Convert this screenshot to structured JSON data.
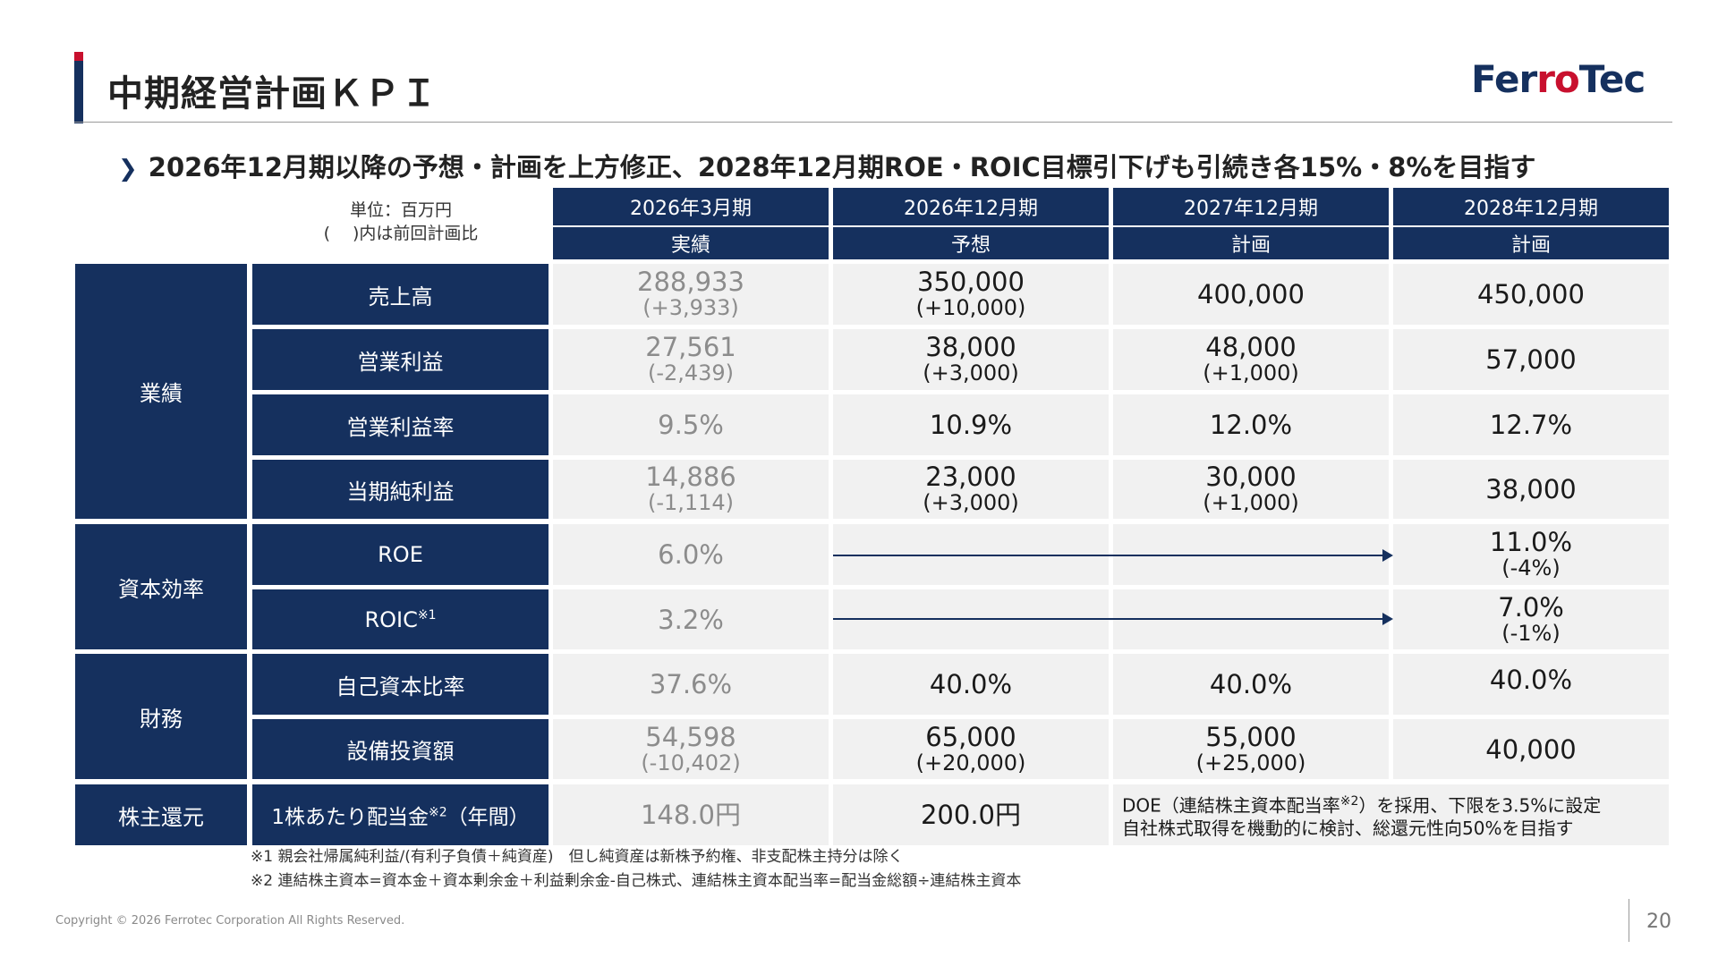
{
  "page": {
    "title": "中期経営計画ＫＰＩ",
    "subtitle": "2026年12月期以降の予想・計画を上方修正、2028年12月期ROE・ROIC目標引下げも引続き各15%・8%を目指す",
    "logo_text_a": "Fer",
    "logo_text_b": "ro",
    "logo_text_c": "Tec",
    "unit_line1": "単位：百万円",
    "unit_line2": "(　 )内は前回計画比",
    "copyright": "Copyright © 2026 Ferrotec Corporation All Rights Reserved.",
    "page_number": "20",
    "icon_chevron": "chevron-right-icon",
    "accent_color": "#15305e",
    "brand_red": "#c8102e"
  },
  "columns": [
    {
      "period": "2026年3月期",
      "type": "実績"
    },
    {
      "period": "2026年12月期",
      "type": "予想"
    },
    {
      "period": "2027年12月期",
      "type": "計画"
    },
    {
      "period": "2028年12月期",
      "type": "計画"
    }
  ],
  "categories": {
    "performance": "業績",
    "capital": "資本効率",
    "finance": "財務",
    "shareholder": "株主還元"
  },
  "rows": {
    "sales": {
      "label": "売上高",
      "c0": "288,933",
      "c0s": "(+3,933)",
      "c1": "350,000",
      "c1s": "(+10,000)",
      "c2": "400,000",
      "c3": "450,000"
    },
    "op_profit": {
      "label": "営業利益",
      "c0": "27,561",
      "c0s": "(-2,439)",
      "c1": "38,000",
      "c1s": "(+3,000)",
      "c2": "48,000",
      "c2s": "(+1,000)",
      "c3": "57,000"
    },
    "op_margin": {
      "label": "営業利益率",
      "c0": "9.5%",
      "c1": "10.9%",
      "c2": "12.0%",
      "c3": "12.7%"
    },
    "net_income": {
      "label": "当期純利益",
      "c0": "14,886",
      "c0s": "(-1,114)",
      "c1": "23,000",
      "c1s": "(+3,000)",
      "c2": "30,000",
      "c2s": "(+1,000)",
      "c3": "38,000"
    },
    "roe": {
      "label": "ROE",
      "c0": "6.0%",
      "c3": "11.0%",
      "c3s": "(-4%)"
    },
    "roic": {
      "label": "ROIC",
      "label_sup": "※1",
      "c0": "3.2%",
      "c3": "7.0%",
      "c3s": "(-1%)"
    },
    "equity_ratio": {
      "label": "自己資本比率",
      "c0": "37.6%",
      "c1": "40.0%",
      "c2": "40.0%",
      "c3": "40.0%"
    },
    "capex": {
      "label": "設備投資額",
      "c0": "54,598",
      "c0s": "(-10,402)",
      "c1": "65,000",
      "c1s": "(+20,000)",
      "c2": "55,000",
      "c2s": "(+25,000)",
      "c3": "40,000"
    },
    "dividend": {
      "label": "1株あたり配当金",
      "label_sup": "※2",
      "label_tail": "（年間）",
      "c0": "148.0円",
      "c1": "200.0円",
      "policy_line1_a": "DOE（連結株主資本配当率",
      "policy_line1_sup": "※2",
      "policy_line1_b": "）を採用、下限を3.5%に設定",
      "policy_line2": "自社株式取得を機動的に検討、総還元性向50%を目指す"
    }
  },
  "notes": {
    "n1": "※1 親会社帰属純利益/(有利子負債＋純資産)　但し純資産は新株予約権、非支配株主持分は除く",
    "n2": "※2 連結株主資本=資本金＋資本剰余金＋利益剰余金-自己株式、連結株主資本配当率=配当金総額÷連結株主資本"
  }
}
